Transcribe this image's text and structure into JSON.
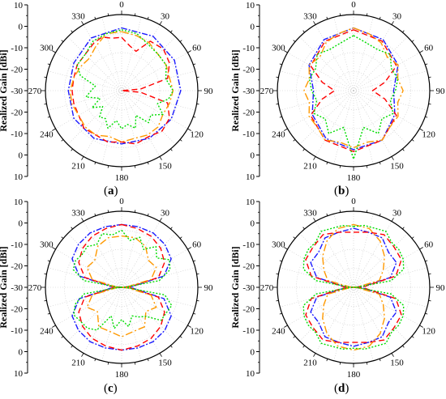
{
  "chart_data": [
    {
      "panel": "(a)",
      "type": "polar-line",
      "ylabel": "Realized Gain [dBi]",
      "rlim": [
        -30,
        10
      ],
      "r_ticks": [
        10,
        0,
        -10,
        -20,
        -30,
        -20,
        -10,
        0,
        10
      ],
      "angle_ticks": [
        "0",
        "30",
        "60",
        "90",
        "120",
        "150",
        "180",
        "210",
        "240",
        "270",
        "300",
        "330"
      ],
      "series": [
        {
          "color": "#1a1aff",
          "dash": "7,2,2,2",
          "angles": [
            0,
            30,
            60,
            90,
            120,
            150,
            180,
            210,
            240,
            270,
            300,
            330,
            360
          ],
          "values": [
            3,
            3,
            2,
            1,
            0,
            -1,
            -2,
            -1,
            -1,
            -2,
            -1,
            2,
            3
          ]
        },
        {
          "color": "#ff0000",
          "dash": "7,4",
          "angles": [
            0,
            10,
            20,
            30,
            45,
            60,
            75,
            85,
            90,
            95,
            105,
            120,
            135,
            150,
            165,
            180,
            195,
            210,
            225,
            240,
            255,
            270,
            285,
            300,
            315,
            330,
            340,
            350,
            360
          ],
          "values": [
            -2,
            -6,
            -8,
            0,
            1,
            -1,
            -5,
            -20,
            -30,
            -20,
            -5,
            -1,
            0,
            -2,
            -1,
            -3,
            -2,
            -3,
            -2,
            -4,
            -4,
            -4,
            -4,
            -3,
            -3,
            -1,
            0,
            -2,
            -2
          ]
        },
        {
          "color": "#ff9900",
          "dash": "9,3,2,3",
          "angles": [
            0,
            15,
            30,
            45,
            60,
            75,
            90,
            105,
            120,
            135,
            150,
            165,
            180,
            195,
            210,
            225,
            240,
            255,
            270,
            285,
            300,
            315,
            330,
            345,
            360
          ],
          "values": [
            1,
            0,
            -1,
            -3,
            -3,
            -4,
            -3,
            -4,
            -5,
            -3,
            -3,
            -4,
            -3,
            -5,
            -3,
            -3,
            -4,
            -3,
            -3,
            -4,
            -5,
            -6,
            -3,
            1,
            1
          ]
        },
        {
          "color": "#00dd00",
          "dash": "2,2",
          "angles": [
            0,
            15,
            30,
            45,
            60,
            75,
            90,
            100,
            110,
            120,
            130,
            140,
            150,
            160,
            170,
            180,
            190,
            200,
            210,
            220,
            230,
            240,
            250,
            260,
            270,
            280,
            290,
            300,
            315,
            330,
            345,
            360
          ],
          "values": [
            2,
            1,
            -2,
            -3,
            -3,
            -6,
            -3,
            -5,
            -10,
            -5,
            -10,
            -8,
            -15,
            -9,
            -12,
            -10,
            -14,
            -9,
            -13,
            -12,
            -17,
            -12,
            -18,
            -11,
            -14,
            -16,
            -7,
            -3,
            -3,
            0,
            1,
            2
          ]
        }
      ]
    },
    {
      "panel": "(b)",
      "type": "polar-line",
      "ylabel": "Realized Gain [dBi]",
      "rlim": [
        -30,
        10
      ],
      "r_ticks": [
        10,
        0,
        -10,
        -20,
        -30,
        -20,
        -10,
        0,
        10
      ],
      "angle_ticks": [
        "0",
        "30",
        "60",
        "90",
        "120",
        "150",
        "180",
        "210",
        "240",
        "270",
        "300",
        "330"
      ],
      "series": [
        {
          "color": "#1a1aff",
          "dash": "7,2,2,2",
          "angles": [
            0,
            30,
            60,
            90,
            120,
            150,
            180,
            210,
            240,
            270,
            300,
            330,
            360
          ],
          "values": [
            3,
            1,
            -3,
            -9,
            -5,
            0,
            1,
            -1,
            -5,
            -9,
            -3,
            1,
            3
          ]
        },
        {
          "color": "#ff0000",
          "dash": "7,4",
          "angles": [
            0,
            30,
            60,
            75,
            90,
            105,
            120,
            150,
            180,
            210,
            240,
            255,
            270,
            285,
            300,
            330,
            360
          ],
          "values": [
            2,
            0,
            -4,
            -13,
            -20,
            -13,
            -4,
            0,
            2,
            0,
            -4,
            -13,
            -20,
            -13,
            -4,
            0,
            2
          ]
        },
        {
          "color": "#ff9900",
          "dash": "9,3,2,3",
          "angles": [
            0,
            15,
            30,
            45,
            60,
            75,
            90,
            105,
            120,
            135,
            150,
            165,
            180,
            195,
            210,
            225,
            240,
            255,
            270,
            285,
            300,
            315,
            330,
            345,
            360
          ],
          "values": [
            3,
            1,
            -1,
            -5,
            -3,
            -6,
            -4,
            -6,
            -3,
            -3,
            0,
            -2,
            0,
            -2,
            0,
            -3,
            -3,
            -6,
            -4,
            -6,
            -3,
            -5,
            -1,
            1,
            3
          ]
        },
        {
          "color": "#00dd00",
          "dash": "2,2",
          "angles": [
            0,
            15,
            30,
            45,
            60,
            75,
            90,
            105,
            120,
            135,
            150,
            165,
            180,
            195,
            210,
            225,
            240,
            255,
            270,
            285,
            300,
            315,
            330,
            345,
            360
          ],
          "values": [
            -1,
            -4,
            -5,
            -3,
            -7,
            -6,
            -8,
            -10,
            -6,
            -9,
            -4,
            -10,
            6,
            -10,
            -4,
            -9,
            -6,
            -10,
            -8,
            -6,
            -7,
            -3,
            -5,
            -4,
            -1
          ]
        }
      ]
    },
    {
      "panel": "(c)",
      "type": "polar-line",
      "ylabel": "Realized Gain [dBi]",
      "rlim": [
        -30,
        10
      ],
      "r_ticks": [
        10,
        0,
        -10,
        -20,
        -30,
        -20,
        -10,
        0,
        10
      ],
      "angle_ticks": [
        "0",
        "30",
        "60",
        "90",
        "120",
        "150",
        "180",
        "210",
        "240",
        "270",
        "300",
        "330"
      ],
      "series": [
        {
          "color": "#1a1aff",
          "dash": "7,2,2,2",
          "angles": [
            0,
            15,
            30,
            45,
            60,
            75,
            85,
            90,
            95,
            105,
            120,
            135,
            150,
            165,
            180,
            195,
            210,
            225,
            240,
            255,
            265,
            270,
            275,
            285,
            300,
            315,
            330,
            345,
            360
          ],
          "values": [
            3,
            3,
            3,
            2,
            0,
            -7,
            -24,
            -30,
            -24,
            -7,
            0,
            2,
            3,
            3,
            3,
            3,
            3,
            2,
            0,
            -7,
            -24,
            -30,
            -24,
            -7,
            0,
            2,
            3,
            3,
            3
          ]
        },
        {
          "color": "#ff0000",
          "dash": "7,4",
          "angles": [
            0,
            15,
            30,
            45,
            60,
            75,
            85,
            90,
            95,
            105,
            120,
            135,
            150,
            165,
            180,
            195,
            210,
            225,
            240,
            255,
            265,
            270,
            275,
            285,
            300,
            315,
            330,
            345,
            360
          ],
          "values": [
            3,
            2,
            1,
            -1,
            -4,
            -10,
            -25,
            -30,
            -25,
            -10,
            -4,
            -1,
            1,
            2,
            3,
            2,
            1,
            -1,
            -4,
            -10,
            -25,
            -30,
            -25,
            -10,
            -4,
            -1,
            1,
            2,
            3
          ]
        },
        {
          "color": "#ff9900",
          "dash": "9,3,2,3",
          "angles": [
            0,
            15,
            30,
            45,
            60,
            75,
            85,
            90,
            95,
            105,
            120,
            135,
            150,
            165,
            180,
            195,
            210,
            225,
            240,
            255,
            265,
            270,
            275,
            285,
            300,
            315,
            330,
            345,
            360
          ],
          "values": [
            -3,
            -3,
            -5,
            -10,
            -9,
            -14,
            -27,
            -30,
            -27,
            -14,
            -9,
            -12,
            -6,
            -6,
            -4,
            -6,
            -6,
            -12,
            -9,
            -14,
            -27,
            -30,
            -27,
            -14,
            -9,
            -10,
            -5,
            -3,
            -3
          ]
        },
        {
          "color": "#00dd00",
          "dash": "2,2",
          "angles": [
            0,
            10,
            20,
            30,
            40,
            50,
            60,
            70,
            80,
            88,
            90,
            92,
            100,
            110,
            120,
            130,
            140,
            150,
            160,
            170,
            180,
            190,
            200,
            210,
            220,
            230,
            240,
            250,
            260,
            268,
            270,
            272,
            280,
            290,
            300,
            310,
            320,
            330,
            340,
            350,
            360
          ],
          "values": [
            0,
            -5,
            -2,
            -7,
            -2,
            -6,
            -1,
            -3,
            -10,
            -28,
            -30,
            -28,
            -7,
            -2,
            -3,
            -3,
            -10,
            -12,
            -14,
            -9,
            -13,
            -8,
            -14,
            -4,
            -2,
            -2,
            -1,
            -4,
            -10,
            -28,
            -30,
            -28,
            -10,
            -3,
            -2,
            -3,
            -2,
            -4,
            0,
            -2,
            0
          ]
        }
      ]
    },
    {
      "panel": "(d)",
      "type": "polar-line",
      "ylabel": "Realized Gain [dBi]",
      "rlim": [
        -30,
        10
      ],
      "r_ticks": [
        10,
        0,
        -10,
        -20,
        -30,
        -20,
        -10,
        0,
        10
      ],
      "angle_ticks": [
        "0",
        "30",
        "60",
        "90",
        "120",
        "150",
        "180",
        "210",
        "240",
        "270",
        "300",
        "330"
      ],
      "series": [
        {
          "color": "#1a1aff",
          "dash": "7,2,2,2",
          "angles": [
            0,
            15,
            30,
            45,
            60,
            75,
            85,
            90,
            95,
            105,
            120,
            135,
            150,
            165,
            180,
            195,
            210,
            225,
            240,
            255,
            265,
            270,
            275,
            285,
            300,
            315,
            330,
            345,
            360
          ],
          "values": [
            1,
            0,
            0,
            -4,
            -4,
            -10,
            -25,
            -30,
            -25,
            -10,
            -4,
            -4,
            0,
            0,
            1,
            0,
            0,
            -4,
            -4,
            -10,
            -25,
            -30,
            -25,
            -10,
            -4,
            -4,
            0,
            0,
            1
          ]
        },
        {
          "color": "#ff0000",
          "dash": "7,4",
          "angles": [
            0,
            15,
            30,
            45,
            60,
            75,
            85,
            90,
            95,
            105,
            120,
            135,
            150,
            165,
            180,
            195,
            210,
            225,
            240,
            255,
            265,
            270,
            275,
            285,
            300,
            315,
            330,
            345,
            360
          ],
          "values": [
            -1,
            0,
            2,
            0,
            -1,
            -7,
            -24,
            -30,
            -24,
            -7,
            -1,
            0,
            2,
            0,
            -1,
            0,
            2,
            0,
            -1,
            -7,
            -24,
            -30,
            -24,
            -7,
            -1,
            0,
            2,
            0,
            -1
          ]
        },
        {
          "color": "#ff9900",
          "dash": "9,3,2,3",
          "angles": [
            0,
            15,
            30,
            45,
            60,
            75,
            85,
            90,
            95,
            105,
            120,
            135,
            150,
            165,
            180,
            195,
            210,
            225,
            240,
            255,
            265,
            270,
            275,
            285,
            300,
            315,
            330,
            345,
            360
          ],
          "values": [
            3,
            2,
            -2,
            -7,
            -12,
            -16,
            -28,
            -30,
            -28,
            -16,
            -12,
            -7,
            -2,
            2,
            3,
            2,
            -2,
            -7,
            -12,
            -16,
            -28,
            -30,
            -28,
            -16,
            -12,
            -7,
            -2,
            2,
            3
          ]
        },
        {
          "color": "#00dd00",
          "dash": "2,2",
          "angles": [
            0,
            10,
            20,
            30,
            40,
            50,
            60,
            70,
            80,
            88,
            90,
            92,
            100,
            110,
            120,
            130,
            140,
            150,
            160,
            170,
            180,
            190,
            200,
            210,
            220,
            230,
            240,
            250,
            260,
            268,
            270,
            272,
            280,
            290,
            300,
            310,
            320,
            330,
            340,
            350,
            360
          ],
          "values": [
            2,
            3,
            3,
            4,
            1,
            1,
            0,
            -2,
            -10,
            -28,
            -30,
            -28,
            -10,
            -2,
            0,
            1,
            1,
            4,
            3,
            3,
            2,
            3,
            3,
            4,
            1,
            1,
            0,
            -2,
            -10,
            -28,
            -30,
            -28,
            -10,
            -2,
            0,
            1,
            1,
            4,
            3,
            3,
            2
          ]
        }
      ]
    }
  ]
}
